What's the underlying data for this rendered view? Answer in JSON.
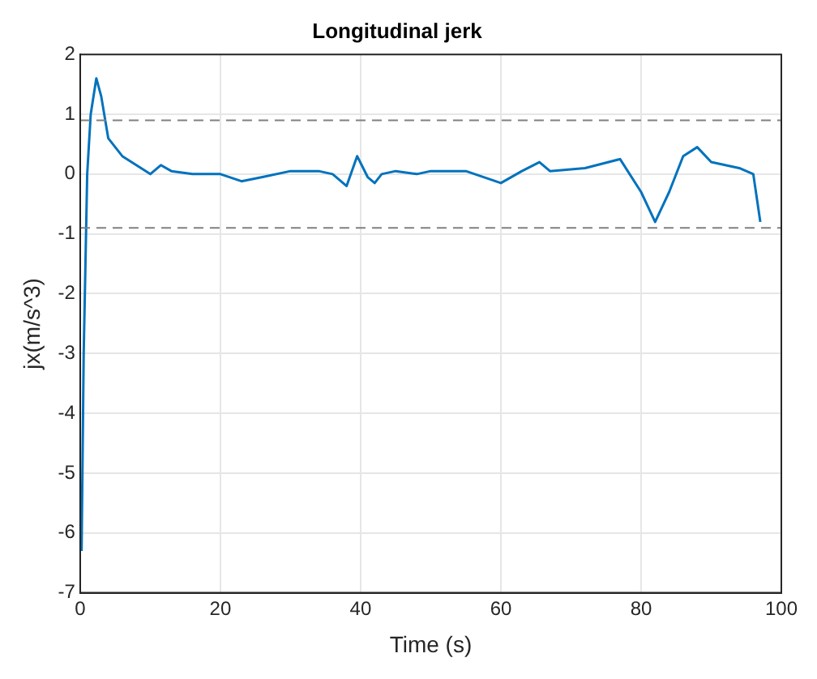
{
  "chart_data": {
    "type": "line",
    "title": "Longitudinal jerk",
    "xlabel": "Time (s)",
    "ylabel": "jx(m/s^3)",
    "xlim": [
      0,
      100
    ],
    "xticks": [
      0,
      20,
      40,
      60,
      80,
      100
    ],
    "ylim": [
      -7,
      2
    ],
    "yticks": [
      -7,
      -6,
      -5,
      -4,
      -3,
      -2,
      -1,
      0,
      1,
      2
    ],
    "grid": true,
    "series": [
      {
        "color": "#0072bd",
        "x": [
          0.2,
          0.5,
          1,
          1.5,
          2.3,
          3,
          4,
          6,
          8,
          10,
          11.5,
          13,
          16,
          20,
          23,
          26,
          30,
          34,
          36,
          38,
          39.5,
          41,
          42,
          43,
          45,
          48,
          50,
          55,
          60,
          63,
          65.5,
          67,
          72,
          77,
          80,
          82,
          84,
          86,
          88,
          90,
          94,
          96,
          97
        ],
        "values": [
          -6.3,
          -3,
          0,
          1,
          1.6,
          1.3,
          0.6,
          0.3,
          0.15,
          0,
          0.15,
          0.05,
          0,
          0,
          -0.12,
          -0.05,
          0.05,
          0.05,
          0,
          -0.2,
          0.3,
          -0.05,
          -0.15,
          0,
          0.05,
          0,
          0.05,
          0.05,
          -0.15,
          0.05,
          0.2,
          0.05,
          0.1,
          0.25,
          -0.3,
          -0.8,
          -0.3,
          0.3,
          0.45,
          0.2,
          0.1,
          0,
          -0.8
        ]
      }
    ],
    "ref_lines": [
      {
        "axis": "y",
        "value": 0.9,
        "color": "#808080",
        "line_style": "dashed"
      },
      {
        "axis": "y",
        "value": -0.9,
        "color": "#808080",
        "line_style": "dashed"
      }
    ]
  }
}
